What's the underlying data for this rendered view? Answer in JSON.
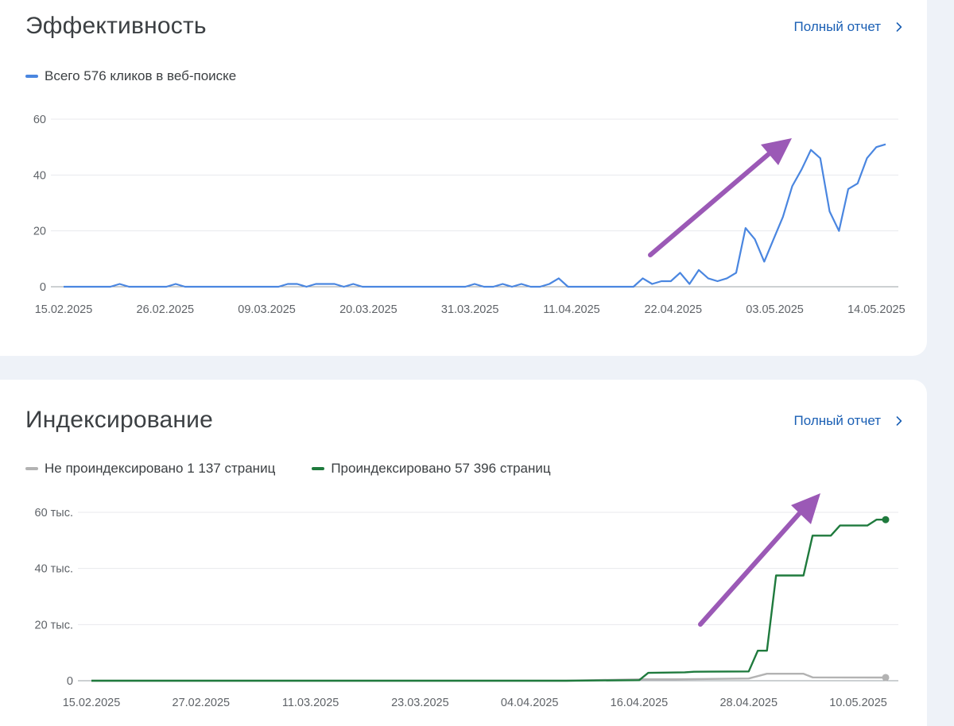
{
  "colors": {
    "clicks": "#4a86e0",
    "not_indexed": "#b3b3b3",
    "indexed": "#1f7a3d",
    "annotation_arrow": "#9b59b6",
    "link": "#1a5fb4"
  },
  "performance": {
    "title": "Эффективность",
    "report_link": "Полный отчет",
    "link_icon": "chevron-right-icon"
  },
  "indexing": {
    "title": "Индексирование",
    "report_link": "Полный отчет",
    "link_icon": "chevron-right-icon"
  },
  "chart_data": [
    {
      "type": "line",
      "title": "",
      "xlabel": "",
      "ylabel": "",
      "ylim": [
        0,
        60
      ],
      "yticks": [
        "0",
        "20",
        "40",
        "60"
      ],
      "yticks_values": [
        0,
        20,
        40,
        60
      ],
      "x_start": "15.02.2025",
      "x_end": "15.05.2025",
      "xtick_labels": [
        "15.02.2025",
        "26.02.2025",
        "09.03.2025",
        "20.03.2025",
        "31.03.2025",
        "11.04.2025",
        "22.04.2025",
        "03.05.2025",
        "14.05.2025"
      ],
      "grid": true,
      "legend": "top-left",
      "annotation": "upward-trend-arrow",
      "series": [
        {
          "name": "Всего 576 кликов в веб-поиске",
          "color": "#4a86e0",
          "values": [
            0,
            0,
            0,
            0,
            0,
            0,
            1,
            0,
            0,
            0,
            0,
            0,
            1,
            0,
            0,
            0,
            0,
            0,
            0,
            0,
            0,
            0,
            0,
            0,
            1,
            1,
            0,
            1,
            1,
            1,
            0,
            1,
            0,
            0,
            0,
            0,
            0,
            0,
            0,
            0,
            0,
            0,
            0,
            0,
            1,
            0,
            0,
            1,
            0,
            1,
            0,
            0,
            1,
            3,
            0,
            0,
            0,
            0,
            0,
            0,
            0,
            0,
            3,
            1,
            2,
            2,
            5,
            1,
            6,
            3,
            2,
            3,
            5,
            21,
            17,
            9,
            17,
            25,
            36,
            42,
            49,
            46,
            27,
            20,
            35,
            37,
            46,
            50,
            51
          ]
        }
      ]
    },
    {
      "type": "line",
      "title": "",
      "xlabel": "",
      "ylabel": "",
      "ylim": [
        0,
        60000
      ],
      "yticks": [
        "0",
        "20 тыс.",
        "40 тыс.",
        "60 тыс."
      ],
      "yticks_values": [
        0,
        20000,
        40000,
        60000
      ],
      "x_start": "15.02.2025",
      "x_end": "13.05.2025",
      "xtick_labels": [
        "15.02.2025",
        "27.02.2025",
        "11.03.2025",
        "23.03.2025",
        "04.04.2025",
        "16.04.2025",
        "28.04.2025",
        "10.05.2025"
      ],
      "grid": true,
      "legend": "top-left",
      "annotation": "upward-trend-arrow",
      "series": [
        {
          "name": "Не проиндексировано 1 137 страниц",
          "color": "#b3b3b3",
          "points": [
            [
              "15.02.2025",
              0
            ],
            [
              "08.04.2025",
              0
            ],
            [
              "16.04.2025",
              500
            ],
            [
              "20.04.2025",
              500
            ],
            [
              "28.04.2025",
              800
            ],
            [
              "30.04.2025",
              2500
            ],
            [
              "04.05.2025",
              2500
            ],
            [
              "05.05.2025",
              1200
            ],
            [
              "13.05.2025",
              1137
            ]
          ]
        },
        {
          "name": "Проиндексировано 57 396 страниц",
          "color": "#1f7a3d",
          "points": [
            [
              "15.02.2025",
              0
            ],
            [
              "08.04.2025",
              0
            ],
            [
              "16.04.2025",
              200
            ],
            [
              "17.04.2025",
              2800
            ],
            [
              "21.04.2025",
              3000
            ],
            [
              "22.04.2025",
              3200
            ],
            [
              "28.04.2025",
              3300
            ],
            [
              "29.04.2025",
              10700
            ],
            [
              "30.04.2025",
              10700
            ],
            [
              "01.05.2025",
              37500
            ],
            [
              "04.05.2025",
              37500
            ],
            [
              "05.05.2025",
              51700
            ],
            [
              "07.05.2025",
              51700
            ],
            [
              "08.05.2025",
              55300
            ],
            [
              "11.05.2025",
              55300
            ],
            [
              "12.05.2025",
              57400
            ],
            [
              "13.05.2025",
              57396
            ]
          ]
        }
      ]
    }
  ]
}
